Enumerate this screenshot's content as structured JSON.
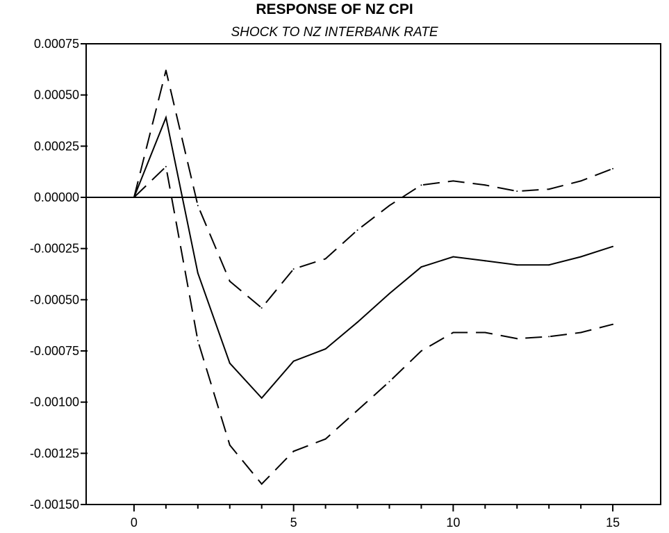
{
  "chart_data": {
    "type": "line",
    "title": "RESPONSE OF NZ CPI",
    "subtitle": "SHOCK TO NZ INTERBANK RATE",
    "xlabel": "",
    "ylabel": "",
    "xlim": [
      -1.5,
      16.5
    ],
    "ylim": [
      -0.0015,
      0.00075
    ],
    "x": [
      0,
      1,
      2,
      3,
      4,
      5,
      6,
      7,
      8,
      9,
      10,
      11,
      12,
      13,
      14,
      15
    ],
    "x_ticks": [
      0,
      5,
      10,
      15
    ],
    "x_tick_labels": [
      "0",
      "5",
      "10",
      "15"
    ],
    "y_ticks": [
      0.00075,
      0.0005,
      0.00025,
      0,
      -0.00025,
      -0.0005,
      -0.00075,
      -0.001,
      -0.00125,
      -0.0015
    ],
    "y_tick_labels": [
      "0.00075",
      "0.00050",
      "0.00025",
      "0.00000",
      "-0.00025",
      "-0.00050",
      "-0.00075",
      "-0.00100",
      "-0.00125",
      "-0.00150"
    ],
    "zero_line": true,
    "grid": false,
    "legend": "none",
    "series": [
      {
        "style": "solid",
        "color": "#000000",
        "values": [
          0,
          0.00039,
          -0.00037,
          -0.00081,
          -0.00098,
          -0.0008,
          -0.00074,
          -0.00061,
          -0.00047,
          -0.00034,
          -0.00029,
          -0.00031,
          -0.00033,
          -0.00033,
          -0.00029,
          -0.00024
        ]
      },
      {
        "style": "dashed",
        "color": "#000000",
        "values": [
          0,
          0.00062,
          -4e-05,
          -0.00041,
          -0.00054,
          -0.00035,
          -0.0003,
          -0.00016,
          -4e-05,
          6e-05,
          8e-05,
          6e-05,
          3e-05,
          4e-05,
          8e-05,
          0.00014
        ]
      },
      {
        "style": "dashed",
        "color": "#000000",
        "values": [
          0,
          0.00015,
          -0.0007,
          -0.00121,
          -0.0014,
          -0.00124,
          -0.00118,
          -0.00104,
          -0.0009,
          -0.00075,
          -0.00066,
          -0.00066,
          -0.00069,
          -0.00068,
          -0.00066,
          -0.00062
        ]
      }
    ]
  }
}
